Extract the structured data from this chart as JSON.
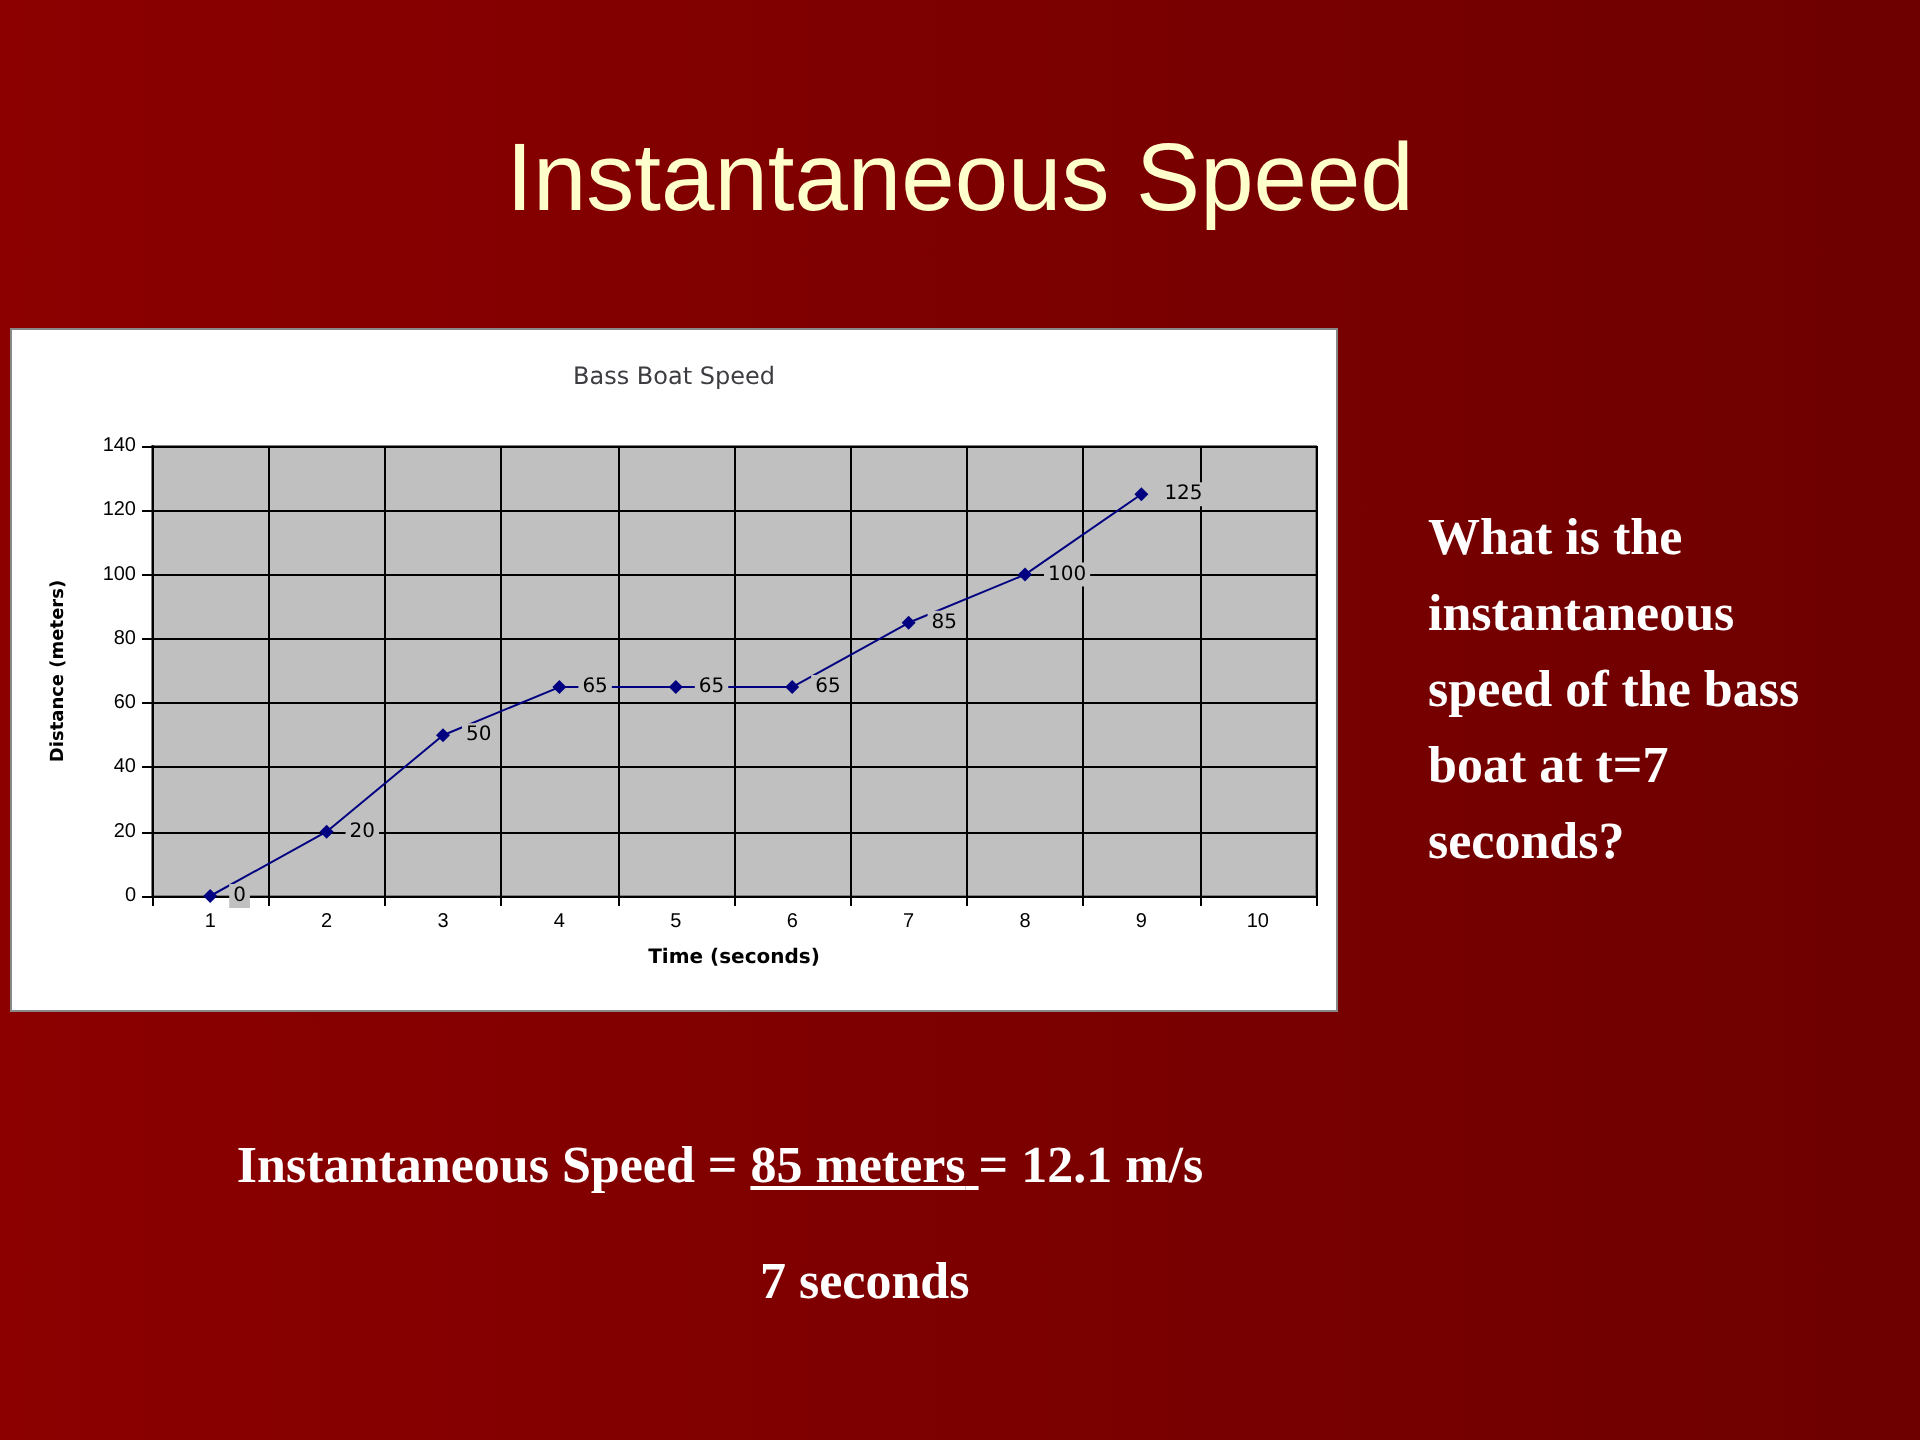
{
  "chart_data": {
    "type": "line",
    "title": "Instantaneous Speed",
    "subtitle": "Bass Boat Speed",
    "xlabel": "Time (seconds)",
    "ylabel": "Distance (meters)",
    "categories": [
      "1",
      "2",
      "3",
      "4",
      "5",
      "6",
      "7",
      "8",
      "9",
      "10"
    ],
    "series": [
      {
        "color": "#000080",
        "values": [
          0,
          20,
          50,
          65,
          65,
          65,
          85,
          100,
          125,
          null
        ]
      }
    ],
    "ylim": [
      0,
      140
    ],
    "yticks": [
      0,
      20,
      40,
      60,
      80,
      100,
      120,
      140
    ],
    "grid": true,
    "marker": "diamond",
    "line_style": "solid",
    "data_labels": true,
    "annotations": [
      "What is the instantaneous speed of the bass boat at t=7 seconds?",
      "Instantaneous Speed =",
      "85 meters",
      "= 12.1 m/s",
      "7 seconds"
    ]
  }
}
